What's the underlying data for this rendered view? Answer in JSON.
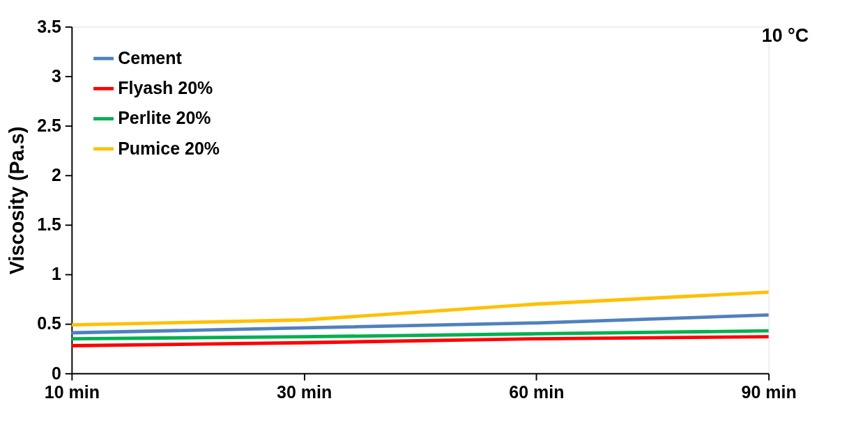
{
  "chart_data": {
    "type": "line",
    "ylabel": "Viscosity (Pa.s)",
    "annotations": [
      "10 °C"
    ],
    "categories": [
      "10 min",
      "30 min",
      "60 min",
      "90 min"
    ],
    "series": [
      {
        "name": "Cement",
        "color": "#4f81bd",
        "values": [
          0.41,
          0.46,
          0.51,
          0.59
        ]
      },
      {
        "name": "Flyash 20%",
        "color": "#ff0000",
        "values": [
          0.28,
          0.31,
          0.35,
          0.37
        ]
      },
      {
        "name": "Perlite 20%",
        "color": "#00b050",
        "values": [
          0.35,
          0.37,
          0.4,
          0.43
        ]
      },
      {
        "name": "Pumice 20%",
        "color": "#ffc000",
        "values": [
          0.49,
          0.54,
          0.7,
          0.82
        ]
      }
    ],
    "ylim": [
      0,
      3.5
    ],
    "yticks": [
      0,
      0.5,
      1,
      1.5,
      2,
      2.5,
      3,
      3.5
    ],
    "grid": false,
    "legend": "top left",
    "marker": "none",
    "line_style": "solid"
  }
}
